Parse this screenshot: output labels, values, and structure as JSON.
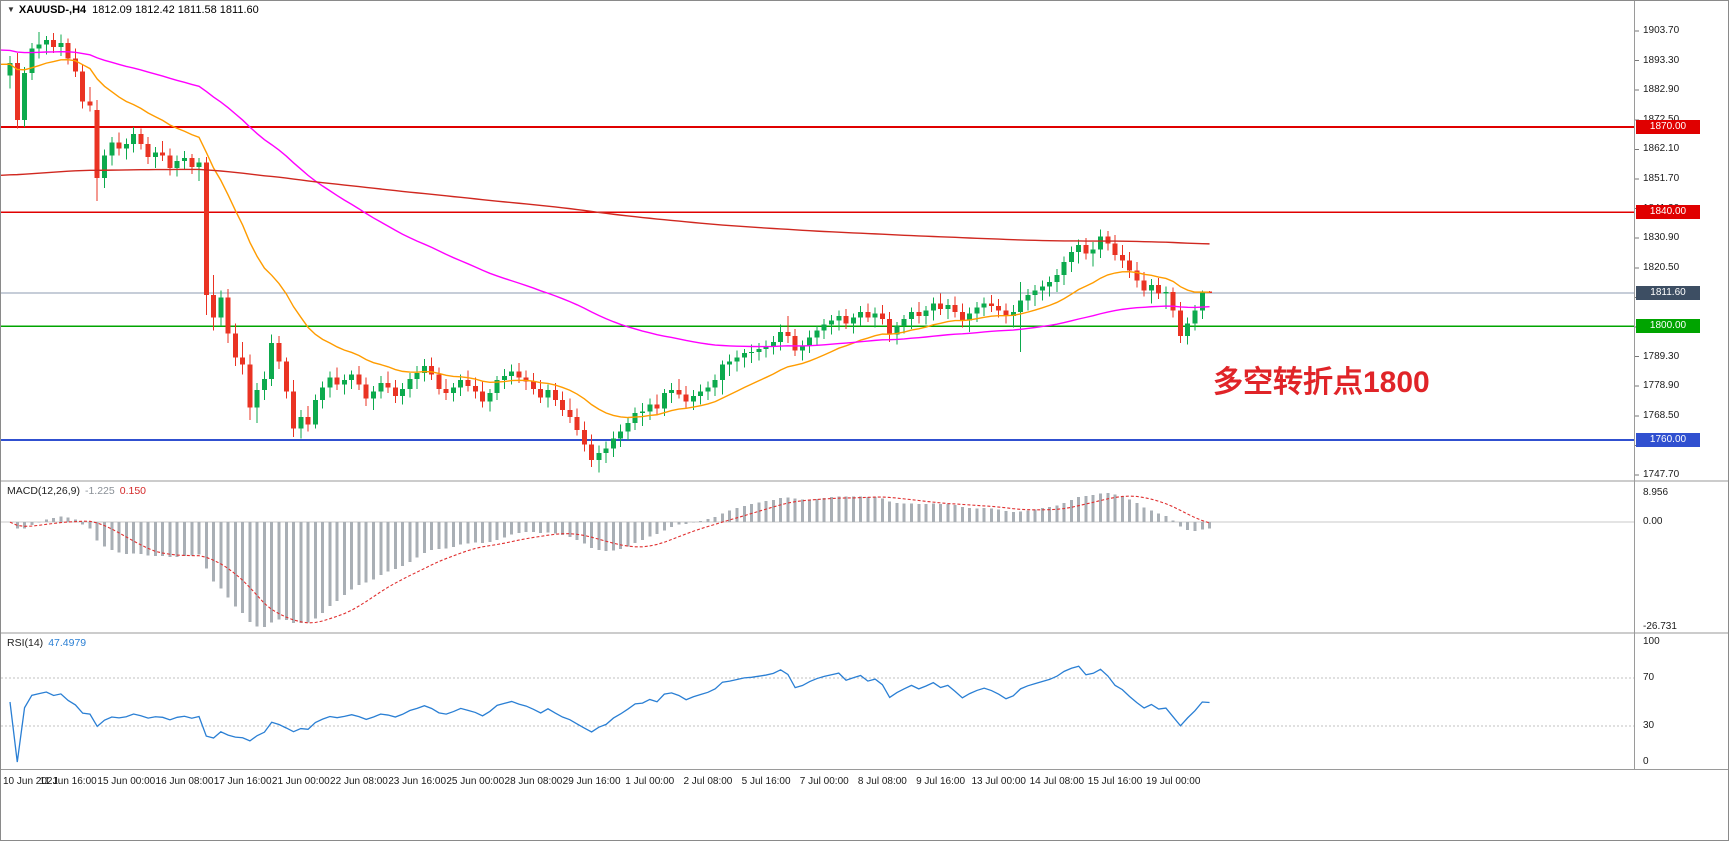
{
  "header": {
    "symbol": "XAUUSD-,H4",
    "ohlc": "1812.09 1812.42 1811.58 1811.60",
    "dropdown_icon": "▼"
  },
  "annotation": {
    "text": "多空转折点1800",
    "color": "#e02428"
  },
  "panels": {
    "macd": {
      "label": "MACD(12,26,9)",
      "value_main": "-1.225",
      "value_signal": "0.150",
      "scale_top": "8.956",
      "scale_zero": "0.00",
      "scale_bottom": "-26.731"
    },
    "rsi": {
      "label": "RSI(14)",
      "value": "47.4979",
      "scale_labels": [
        "100",
        "70",
        "30",
        "0"
      ]
    }
  },
  "price_scale": {
    "current": "1811.60",
    "ticks": [
      "1903.70",
      "1893.30",
      "1882.90",
      "1872.50",
      "1862.10",
      "1851.70",
      "1841.30",
      "1830.90",
      "1820.50",
      "1810.10",
      "1799.70",
      "1789.30",
      "1778.90",
      "1768.50",
      "1758.10",
      "1747.70"
    ]
  },
  "time_axis": {
    "labels": [
      "10 Jun 2021",
      "11 Jun 16:00",
      "15 Jun 00:00",
      "16 Jun 08:00",
      "17 Jun 16:00",
      "21 Jun 00:00",
      "22 Jun 08:00",
      "23 Jun 16:00",
      "25 Jun 00:00",
      "28 Jun 08:00",
      "29 Jun 16:00",
      "1 Jul 00:00",
      "2 Jul 08:00",
      "5 Jul 16:00",
      "7 Jul 00:00",
      "8 Jul 08:00",
      "9 Jul 16:00",
      "13 Jul 00:00",
      "14 Jul 08:00",
      "15 Jul 16:00",
      "19 Jul 00:00"
    ]
  },
  "chart_data": {
    "type": "candlestick",
    "symbol": "XAUUSD-",
    "timeframe": "H4",
    "title": "XAUUSD- H4",
    "ohlc_current": {
      "open": 1812.09,
      "high": 1812.42,
      "low": 1811.58,
      "close": 1811.6
    },
    "price_range": [
      1747.7,
      1903.7
    ],
    "colors": {
      "up": "#0caa4d",
      "down": "#ea3323",
      "ma_fast": "#ff9c00",
      "ma_mid": "#ff00ff",
      "ma_slow": "#d02820",
      "macd_hist": "#a9afb5",
      "macd_signal": "#e03030",
      "macd_zero": "#c8c8c8",
      "rsi_line": "#2a7fd4",
      "rsi_level": "#c0c0c0",
      "current_line": "#8c9bb0",
      "current_tag_bg": "#3d4e63"
    },
    "horizontal_lines": [
      {
        "price": 1870.0,
        "label": "1870.00",
        "color": "#e00000"
      },
      {
        "price": 1840.0,
        "label": "1840.00",
        "color": "#e00000"
      },
      {
        "price": 1800.0,
        "label": "1800.00",
        "color": "#00a400"
      },
      {
        "price": 1760.0,
        "label": "1760.00",
        "color": "#3050d0"
      }
    ],
    "moving_averages": [
      {
        "name": "fast-orange",
        "period": 20,
        "start": 1892.0,
        "color": "#ff9c00"
      },
      {
        "name": "mid-magenta",
        "period": 80,
        "start": 1897.0,
        "color": "#ff00ff"
      },
      {
        "name": "slow-red",
        "period": 500,
        "start": 1853.0,
        "color": "#d02820"
      }
    ],
    "indicators": {
      "macd": {
        "fast": 12,
        "slow": 26,
        "signal": 9,
        "current_macd": -1.225,
        "current_signal": 0.15,
        "scale_max": 8.956,
        "scale_min": -26.731
      },
      "rsi": {
        "period": 14,
        "current": 47.4979,
        "levels": [
          30,
          70
        ],
        "range": [
          0,
          100
        ]
      }
    },
    "candles": [
      [
        1888.0,
        1895.0,
        1883.5,
        1892.5
      ],
      [
        1892.5,
        1896.0,
        1869.5,
        1872.5
      ],
      [
        1872.5,
        1891.0,
        1870.0,
        1889.0
      ],
      [
        1889.0,
        1899.5,
        1886.5,
        1897.5
      ],
      [
        1897.5,
        1903.3,
        1894.0,
        1899.0
      ],
      [
        1899.0,
        1902.0,
        1895.5,
        1900.5
      ],
      [
        1900.5,
        1903.0,
        1896.0,
        1898.0
      ],
      [
        1898.0,
        1902.5,
        1895.0,
        1899.5
      ],
      [
        1899.5,
        1901.0,
        1892.0,
        1894.0
      ],
      [
        1894.0,
        1897.5,
        1887.5,
        1889.5
      ],
      [
        1889.5,
        1892.0,
        1876.5,
        1879.0
      ],
      [
        1879.0,
        1884.0,
        1875.5,
        1877.5
      ],
      [
        1876.0,
        1879.5,
        1844.0,
        1852.0
      ],
      [
        1852.0,
        1862.0,
        1848.5,
        1860.0
      ],
      [
        1860.0,
        1866.5,
        1856.5,
        1864.5
      ],
      [
        1864.5,
        1868.0,
        1860.0,
        1862.5
      ],
      [
        1862.5,
        1866.0,
        1858.5,
        1864.0
      ],
      [
        1864.0,
        1870.0,
        1861.0,
        1867.5
      ],
      [
        1867.5,
        1869.5,
        1862.0,
        1864.0
      ],
      [
        1864.0,
        1866.5,
        1857.0,
        1859.5
      ],
      [
        1859.5,
        1863.0,
        1855.5,
        1861.0
      ],
      [
        1861.0,
        1865.0,
        1858.0,
        1860.0
      ],
      [
        1860.0,
        1862.5,
        1853.0,
        1855.5
      ],
      [
        1855.5,
        1860.0,
        1852.5,
        1858.0
      ],
      [
        1858.0,
        1861.5,
        1855.0,
        1859.0
      ],
      [
        1859.0,
        1860.5,
        1853.5,
        1856.0
      ],
      [
        1856.0,
        1859.0,
        1851.0,
        1857.5
      ],
      [
        1857.5,
        1859.5,
        1804.0,
        1811.0
      ],
      [
        1811.0,
        1818.0,
        1798.5,
        1803.0
      ],
      [
        1803.0,
        1812.5,
        1800.0,
        1810.0
      ],
      [
        1810.0,
        1813.0,
        1794.0,
        1797.5
      ],
      [
        1797.5,
        1801.0,
        1786.0,
        1789.0
      ],
      [
        1789.0,
        1794.5,
        1783.0,
        1786.5
      ],
      [
        1786.5,
        1790.0,
        1767.0,
        1771.5
      ],
      [
        1771.5,
        1780.0,
        1766.0,
        1777.5
      ],
      [
        1777.5,
        1784.0,
        1774.0,
        1781.5
      ],
      [
        1781.5,
        1797.0,
        1779.0,
        1794.0
      ],
      [
        1794.0,
        1796.5,
        1785.0,
        1787.5
      ],
      [
        1787.5,
        1789.0,
        1774.5,
        1777.0
      ],
      [
        1777.0,
        1781.0,
        1761.0,
        1764.0
      ],
      [
        1764.0,
        1770.5,
        1760.5,
        1768.0
      ],
      [
        1768.0,
        1772.0,
        1763.0,
        1765.5
      ],
      [
        1765.5,
        1776.0,
        1764.0,
        1774.0
      ],
      [
        1774.0,
        1780.5,
        1771.0,
        1778.5
      ],
      [
        1778.5,
        1784.0,
        1775.0,
        1782.0
      ],
      [
        1782.0,
        1785.5,
        1777.5,
        1779.5
      ],
      [
        1779.5,
        1783.0,
        1776.0,
        1781.0
      ],
      [
        1781.0,
        1784.5,
        1778.0,
        1783.0
      ],
      [
        1783.0,
        1786.0,
        1777.5,
        1779.5
      ],
      [
        1779.5,
        1782.0,
        1772.0,
        1774.5
      ],
      [
        1774.5,
        1779.0,
        1770.5,
        1777.0
      ],
      [
        1777.0,
        1782.5,
        1774.5,
        1780.0
      ],
      [
        1780.0,
        1784.0,
        1776.5,
        1778.5
      ],
      [
        1778.5,
        1781.0,
        1773.0,
        1775.5
      ],
      [
        1775.5,
        1780.0,
        1772.5,
        1778.0
      ],
      [
        1778.0,
        1783.5,
        1775.0,
        1781.5
      ],
      [
        1781.5,
        1786.0,
        1778.0,
        1783.5
      ],
      [
        1783.5,
        1788.5,
        1780.5,
        1786.0
      ],
      [
        1786.0,
        1789.0,
        1781.0,
        1783.0
      ],
      [
        1783.0,
        1785.5,
        1776.0,
        1778.0
      ],
      [
        1778.0,
        1781.5,
        1774.0,
        1776.5
      ],
      [
        1776.5,
        1780.0,
        1773.5,
        1778.5
      ],
      [
        1778.5,
        1783.0,
        1775.5,
        1781.0
      ],
      [
        1781.0,
        1784.5,
        1777.0,
        1779.0
      ],
      [
        1779.0,
        1782.0,
        1774.5,
        1777.0
      ],
      [
        1777.0,
        1780.5,
        1771.5,
        1773.5
      ],
      [
        1773.5,
        1778.0,
        1770.0,
        1776.5
      ],
      [
        1776.5,
        1782.5,
        1774.0,
        1781.0
      ],
      [
        1781.0,
        1785.0,
        1778.0,
        1782.5
      ],
      [
        1782.5,
        1786.5,
        1779.5,
        1784.0
      ],
      [
        1784.0,
        1787.0,
        1780.0,
        1782.0
      ],
      [
        1782.0,
        1784.5,
        1777.5,
        1780.5
      ],
      [
        1780.5,
        1783.5,
        1776.0,
        1778.0
      ],
      [
        1778.0,
        1781.0,
        1773.0,
        1775.0
      ],
      [
        1775.0,
        1779.5,
        1771.5,
        1777.5
      ],
      [
        1777.5,
        1780.0,
        1772.0,
        1774.0
      ],
      [
        1774.0,
        1777.0,
        1768.5,
        1770.5
      ],
      [
        1770.5,
        1774.5,
        1766.0,
        1768.0
      ],
      [
        1768.0,
        1771.0,
        1761.5,
        1763.5
      ],
      [
        1763.5,
        1766.5,
        1756.0,
        1758.5
      ],
      [
        1758.5,
        1762.0,
        1750.5,
        1753.0
      ],
      [
        1753.0,
        1758.0,
        1748.5,
        1755.5
      ],
      [
        1755.5,
        1759.5,
        1752.0,
        1757.0
      ],
      [
        1757.0,
        1763.0,
        1754.0,
        1760.5
      ],
      [
        1760.5,
        1765.5,
        1757.5,
        1763.0
      ],
      [
        1763.0,
        1768.0,
        1760.0,
        1766.0
      ],
      [
        1766.0,
        1771.5,
        1763.5,
        1769.5
      ],
      [
        1769.5,
        1773.0,
        1765.0,
        1770.0
      ],
      [
        1770.0,
        1774.5,
        1767.0,
        1772.5
      ],
      [
        1772.5,
        1776.0,
        1769.0,
        1771.0
      ],
      [
        1771.0,
        1778.0,
        1768.5,
        1776.5
      ],
      [
        1776.5,
        1780.0,
        1773.0,
        1777.5
      ],
      [
        1777.5,
        1781.5,
        1774.5,
        1776.0
      ],
      [
        1776.0,
        1779.0,
        1771.0,
        1773.5
      ],
      [
        1773.5,
        1777.5,
        1770.5,
        1775.5
      ],
      [
        1775.5,
        1779.5,
        1772.5,
        1777.0
      ],
      [
        1777.0,
        1780.5,
        1774.0,
        1778.5
      ],
      [
        1778.5,
        1783.0,
        1775.5,
        1781.0
      ],
      [
        1781.0,
        1788.0,
        1776.0,
        1786.5
      ],
      [
        1786.5,
        1790.0,
        1782.5,
        1787.5
      ],
      [
        1787.5,
        1791.5,
        1784.0,
        1789.0
      ],
      [
        1789.0,
        1792.0,
        1785.5,
        1790.5
      ],
      [
        1790.5,
        1793.5,
        1787.0,
        1791.0
      ],
      [
        1791.0,
        1794.0,
        1788.0,
        1792.0
      ],
      [
        1792.0,
        1795.0,
        1789.0,
        1793.0
      ],
      [
        1793.0,
        1796.5,
        1790.0,
        1794.5
      ],
      [
        1794.5,
        1800.5,
        1791.5,
        1798.0
      ],
      [
        1798.0,
        1803.5,
        1794.0,
        1796.5
      ],
      [
        1796.5,
        1799.0,
        1789.5,
        1791.5
      ],
      [
        1791.5,
        1795.0,
        1788.0,
        1793.0
      ],
      [
        1793.0,
        1798.5,
        1790.5,
        1796.0
      ],
      [
        1796.0,
        1800.0,
        1793.0,
        1798.5
      ],
      [
        1798.5,
        1802.5,
        1795.5,
        1800.5
      ],
      [
        1800.5,
        1804.0,
        1797.0,
        1802.0
      ],
      [
        1802.0,
        1805.5,
        1798.5,
        1803.5
      ],
      [
        1803.5,
        1806.0,
        1799.0,
        1801.0
      ],
      [
        1801.0,
        1804.5,
        1797.5,
        1803.0
      ],
      [
        1803.0,
        1807.0,
        1800.0,
        1805.0
      ],
      [
        1805.0,
        1808.0,
        1801.5,
        1803.0
      ],
      [
        1803.0,
        1806.5,
        1799.5,
        1804.5
      ],
      [
        1804.5,
        1807.5,
        1800.5,
        1802.5
      ],
      [
        1802.5,
        1805.0,
        1794.5,
        1797.0
      ],
      [
        1797.0,
        1801.5,
        1793.5,
        1800.0
      ],
      [
        1800.0,
        1804.0,
        1797.5,
        1802.5
      ],
      [
        1802.5,
        1806.5,
        1799.0,
        1805.0
      ],
      [
        1805.0,
        1808.5,
        1801.0,
        1803.5
      ],
      [
        1803.5,
        1807.0,
        1800.5,
        1805.5
      ],
      [
        1805.5,
        1810.0,
        1802.0,
        1808.0
      ],
      [
        1808.0,
        1811.5,
        1804.0,
        1806.0
      ],
      [
        1806.0,
        1809.5,
        1802.5,
        1807.5
      ],
      [
        1807.5,
        1810.5,
        1803.0,
        1805.0
      ],
      [
        1805.0,
        1808.0,
        1799.5,
        1802.0
      ],
      [
        1802.0,
        1806.5,
        1798.0,
        1804.5
      ],
      [
        1804.5,
        1808.5,
        1801.5,
        1806.5
      ],
      [
        1806.5,
        1810.0,
        1803.5,
        1808.0
      ],
      [
        1808.0,
        1811.0,
        1805.0,
        1807.0
      ],
      [
        1807.0,
        1809.5,
        1803.0,
        1805.5
      ],
      [
        1805.5,
        1808.0,
        1801.0,
        1803.5
      ],
      [
        1803.5,
        1807.5,
        1799.5,
        1805.0
      ],
      [
        1805.0,
        1815.5,
        1791.0,
        1809.0
      ],
      [
        1809.0,
        1813.0,
        1805.5,
        1811.0
      ],
      [
        1811.0,
        1814.5,
        1807.0,
        1812.5
      ],
      [
        1812.5,
        1816.0,
        1809.0,
        1814.0
      ],
      [
        1814.0,
        1817.5,
        1810.5,
        1815.5
      ],
      [
        1815.5,
        1820.0,
        1812.0,
        1818.0
      ],
      [
        1818.0,
        1824.5,
        1814.5,
        1822.5
      ],
      [
        1822.5,
        1828.0,
        1819.0,
        1826.0
      ],
      [
        1826.0,
        1830.5,
        1822.0,
        1828.5
      ],
      [
        1828.5,
        1831.0,
        1823.5,
        1825.5
      ],
      [
        1825.5,
        1829.5,
        1821.0,
        1827.0
      ],
      [
        1827.0,
        1834.0,
        1824.0,
        1831.5
      ],
      [
        1831.5,
        1833.5,
        1826.5,
        1829.0
      ],
      [
        1829.0,
        1832.0,
        1823.0,
        1825.0
      ],
      [
        1825.0,
        1828.5,
        1820.5,
        1823.0
      ],
      [
        1823.0,
        1826.0,
        1817.0,
        1819.5
      ],
      [
        1819.5,
        1822.5,
        1813.5,
        1816.0
      ],
      [
        1816.0,
        1819.0,
        1810.5,
        1812.5
      ],
      [
        1812.5,
        1816.5,
        1808.0,
        1814.5
      ],
      [
        1814.5,
        1817.0,
        1809.5,
        1811.5
      ],
      [
        1811.5,
        1814.0,
        1806.0,
        1812.0
      ],
      [
        1812.0,
        1813.5,
        1803.0,
        1805.5
      ],
      [
        1805.5,
        1808.5,
        1794.0,
        1796.5
      ],
      [
        1796.5,
        1803.0,
        1793.5,
        1801.0
      ],
      [
        1801.0,
        1807.5,
        1798.5,
        1805.5
      ],
      [
        1805.5,
        1812.5,
        1802.5,
        1812.0
      ],
      [
        1812.09,
        1812.42,
        1811.58,
        1811.6
      ]
    ]
  }
}
